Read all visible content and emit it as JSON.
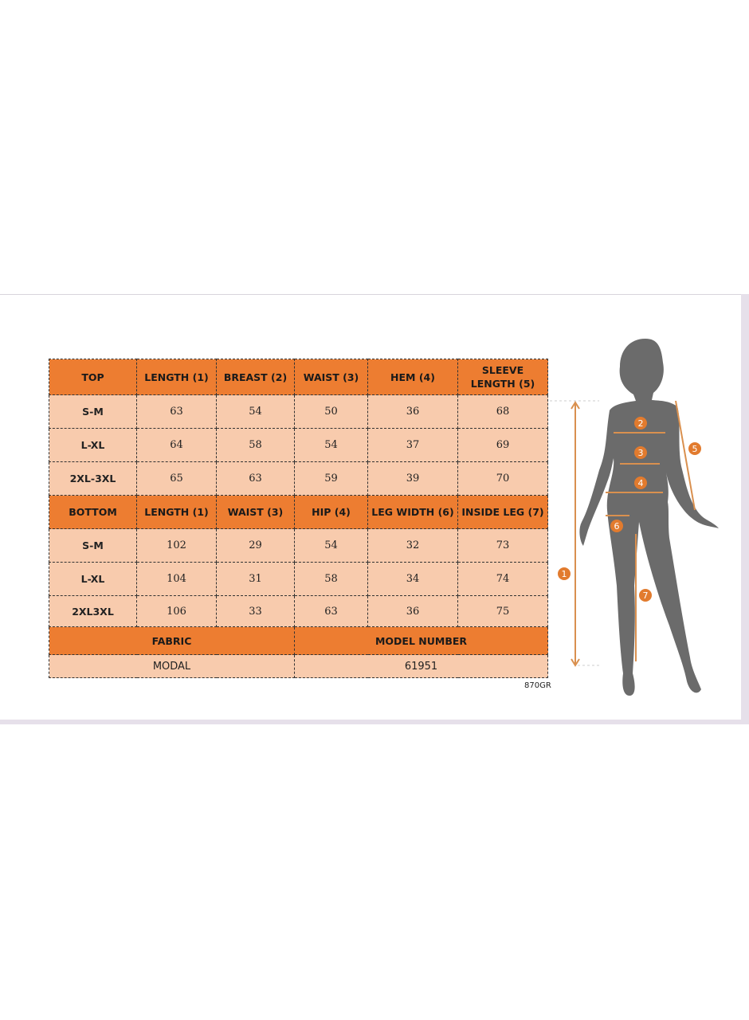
{
  "top": {
    "headers": [
      "TOP",
      "LENGTH (1)",
      "BREAST (2)",
      "WAIST (3)",
      "HEM (4)",
      "SLEEVE LENGTH (5)"
    ],
    "rows": [
      [
        "S-M",
        "63",
        "54",
        "50",
        "36",
        "68"
      ],
      [
        "L-XL",
        "64",
        "58",
        "54",
        "37",
        "69"
      ],
      [
        "2XL-3XL",
        "65",
        "63",
        "59",
        "39",
        "70"
      ]
    ]
  },
  "bottom": {
    "headers": [
      "BOTTOM",
      "LENGTH (1)",
      "WAIST (3)",
      "HIP (4)",
      "LEG WIDTH (6)",
      "INSIDE LEG (7)"
    ],
    "rows": [
      [
        "S-M",
        "102",
        "29",
        "54",
        "32",
        "73"
      ],
      [
        "L-XL",
        "104",
        "31",
        "58",
        "34",
        "74"
      ],
      [
        "2XL3XL",
        "106",
        "33",
        "63",
        "36",
        "75"
      ]
    ]
  },
  "info": {
    "fabric_label": "FABRIC",
    "model_label": "MODEL NUMBER",
    "fabric": "MODAL",
    "model": "61951"
  },
  "code": "870GR",
  "figure": {
    "markers": [
      "1",
      "2",
      "3",
      "4",
      "5",
      "6",
      "7"
    ]
  },
  "colors": {
    "header": "#ED7D31",
    "cell": "#F8CBAD",
    "silhouette": "#6b6b6b",
    "arrow": "#D9904F"
  }
}
